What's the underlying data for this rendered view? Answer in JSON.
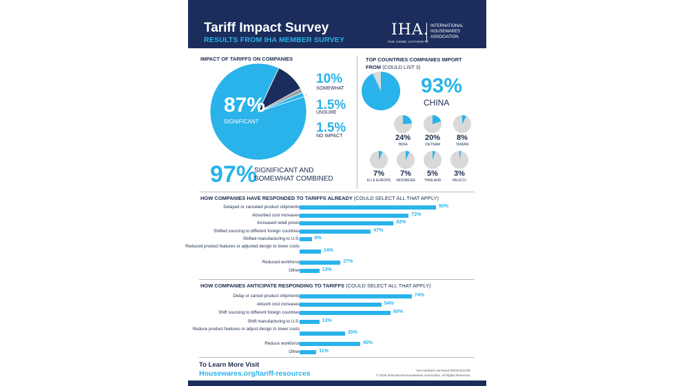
{
  "header": {
    "title": "Tariff Impact Survey",
    "subtitle": "RESULTS FROM IHA MEMBER SURVEY",
    "logo_mark": "IHA.",
    "logo_tagline": "THE HOME AUTHORITY",
    "logo_name": "INTERNATIONAL HOUSEWARES ASSOCIATION"
  },
  "colors": {
    "navy": "#1b2d5c",
    "accent": "#29b3ea",
    "neutral": "#d9d9d9",
    "gray": "#9aa0a8"
  },
  "chart_data": [
    {
      "type": "pie",
      "title": "IMPACT OF TARIFFS ON COMPANIES",
      "categories": [
        "SIGNIFICANT",
        "SOMEWHAT",
        "UNSURE",
        "NO IMPACT"
      ],
      "values": [
        87,
        10,
        1.5,
        1.5
      ],
      "value_labels": [
        "87%",
        "10%",
        "1.5%",
        "1.5%"
      ],
      "annotation": {
        "value": "97%",
        "text": "SIGNIFICANT AND SOMEWHAT COMBINED"
      }
    },
    {
      "type": "pie",
      "title": "TOP COUNTRIES COMPANIES IMPORT FROM",
      "title_note": "(COULD LIST 3)",
      "categories": [
        "CHINA",
        "INDIA",
        "VIETNAM",
        "TAIWAN",
        "EU & EUROPE",
        "INDONESIA",
        "THAILAND",
        "MEXICO"
      ],
      "values": [
        93,
        24,
        20,
        8,
        7,
        7,
        5,
        3
      ],
      "value_labels": [
        "93%",
        "24%",
        "20%",
        "8%",
        "7%",
        "7%",
        "5%",
        "3%"
      ]
    },
    {
      "type": "bar",
      "title": "HOW COMPANIES HAVE RESPONDED TO TARIFFS ALREADY",
      "title_note": "(COULD SELECT ALL THAT APPLY)",
      "categories": [
        "Delayed or canceled product shipments",
        "Absorbed cost increases",
        "Increased retail prices",
        "Shifted sourcing to different foreign countries",
        "Shifted manufacturing to U.S.",
        "Reduced product features or adjusted design to lower costs",
        "Reduced workforce",
        "Other"
      ],
      "values": [
        90,
        72,
        62,
        47,
        8,
        14,
        27,
        13
      ],
      "value_labels": [
        "90%",
        "72%",
        "62%",
        "47%",
        "8%",
        "14%",
        "27%",
        "13%"
      ]
    },
    {
      "type": "bar",
      "title": "HOW COMPANIES ANTICIPATE RESPONDING TO TARIFFS",
      "title_note": "(COULD SELECT ALL THAT APPLY)",
      "categories": [
        "Delay or cancel product shipments",
        "Absorb cost increases",
        "Shift sourcing to different foreign countries",
        "Shift manufacturing to U.S.",
        "Reduce product features or adjust design to lower costs",
        "Reduce workforce",
        "Other"
      ],
      "values": [
        74,
        54,
        60,
        13,
        30,
        40,
        11
      ],
      "value_labels": [
        "74%",
        "54%",
        "60%",
        "13%",
        "30%",
        "40%",
        "11%"
      ]
    }
  ],
  "footer": {
    "heading": "To Learn More Visit",
    "link": "Housewares.org/tariff-resources",
    "note1": "IHA members surveyed 5/5/25-5/12/25",
    "note2": "© 2025 International Housewares Association. All Rights Reserved."
  }
}
